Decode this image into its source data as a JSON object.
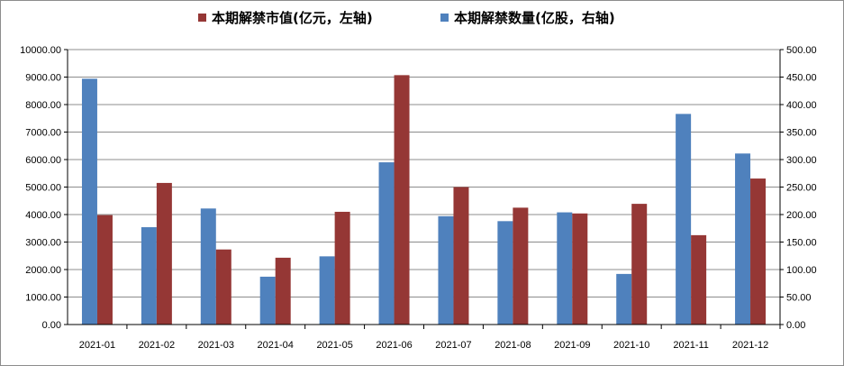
{
  "chart_data": {
    "type": "bar",
    "categories": [
      "2021-01",
      "2021-02",
      "2021-03",
      "2021-04",
      "2021-05",
      "2021-06",
      "2021-07",
      "2021-08",
      "2021-09",
      "2021-10",
      "2021-11",
      "2021-12"
    ],
    "series": [
      {
        "name": "本期解禁市值(亿元，左轴)",
        "axis": "left",
        "color": "#953735",
        "values": [
          3980,
          5150,
          2730,
          2430,
          4100,
          9070,
          5000,
          4250,
          4040,
          4390,
          3250,
          5310
        ]
      },
      {
        "name": "本期解禁数量(亿股，右轴)",
        "axis": "right",
        "color": "#4f81bd",
        "values": [
          447,
          177,
          211,
          87,
          124,
          295,
          197,
          188,
          204,
          92,
          383,
          311
        ]
      }
    ],
    "y_left": {
      "min": 0,
      "max": 10000,
      "ticks": [
        "0.00",
        "1000.00",
        "2000.00",
        "3000.00",
        "4000.00",
        "5000.00",
        "6000.00",
        "7000.00",
        "8000.00",
        "9000.00",
        "10000.00"
      ]
    },
    "y_right": {
      "min": 0,
      "max": 500,
      "ticks": [
        "0.00",
        "50.00",
        "100.00",
        "150.00",
        "200.00",
        "250.00",
        "300.00",
        "350.00",
        "400.00",
        "450.00",
        "500.00"
      ]
    },
    "grid": true,
    "legend": "top"
  }
}
